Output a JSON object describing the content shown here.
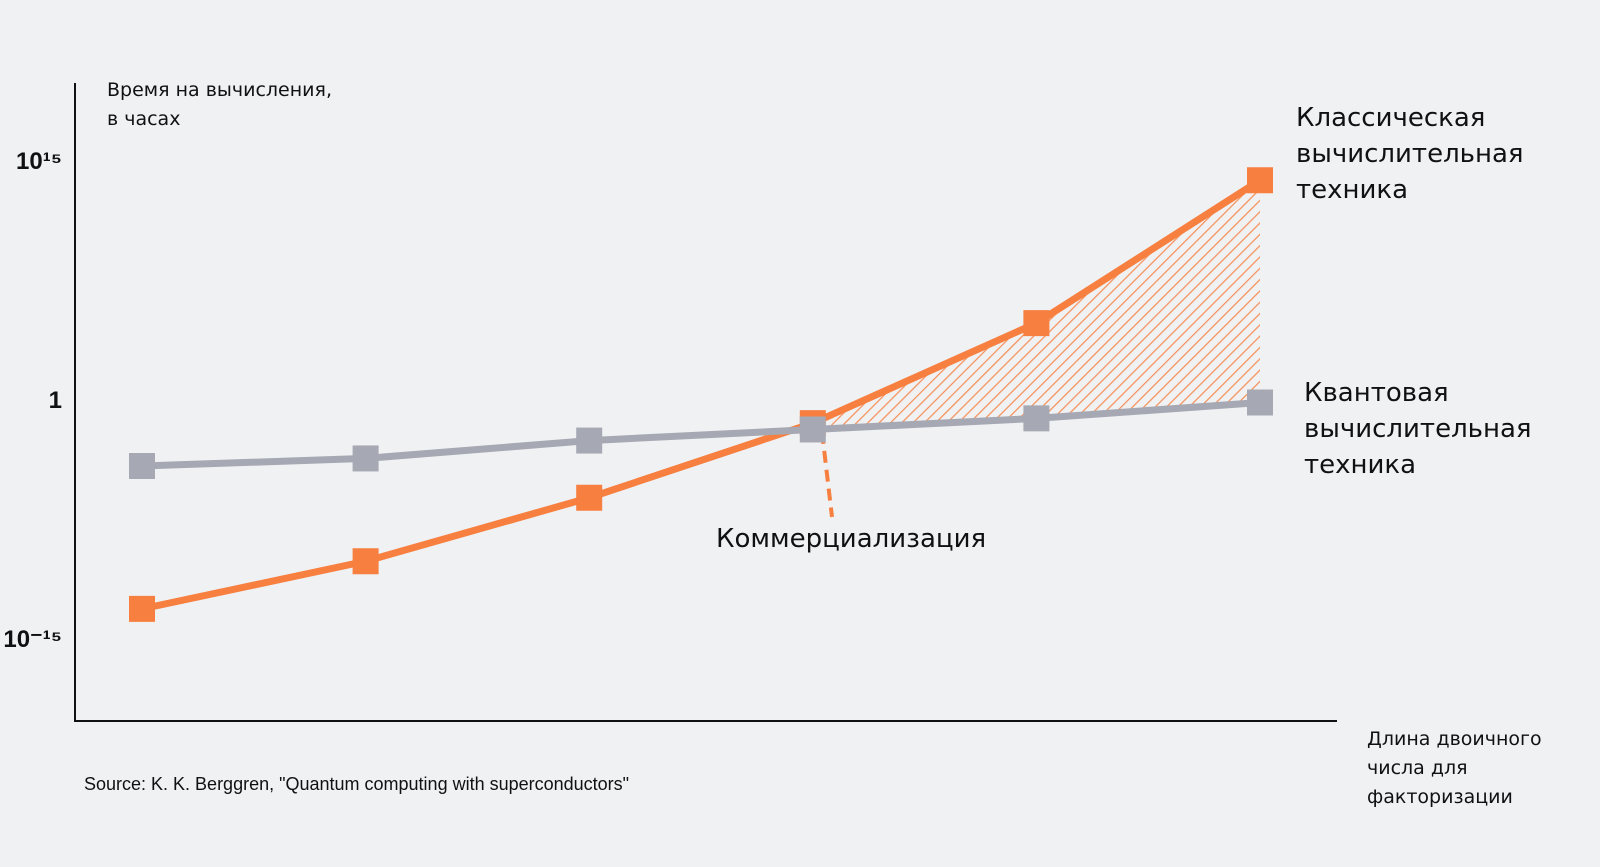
{
  "chart_data": {
    "type": "line",
    "y_label": [
      "Время на вычисления,",
      "в часах"
    ],
    "x_label": "Длина двоичного числа для факторизации",
    "categories": [
      null,
      null,
      null,
      null,
      null,
      null
    ],
    "series": [
      {
        "name": "Классическая вычислительная техника",
        "color": "#f77f3f",
        "values": [
          1e-13,
          1e-10,
          1e-06,
          0.05,
          100000.0,
          100000000000000.0
        ]
      },
      {
        "name": "Квантовая вычислительная техника",
        "color": "#a6a9b3",
        "values": [
          0.0001,
          0.0003,
          0.004,
          0.02,
          0.1,
          1
        ]
      }
    ],
    "log_y": true,
    "ylim": [
      1e-20,
      1e+20
    ],
    "yticks": [
      {
        "value": 1000000000000000.0,
        "label": "10¹⁵"
      },
      1,
      {
        "value": 1e-15,
        "label": "10⁻¹⁵"
      }
    ],
    "grid": false,
    "annotation": "Коммерциализация",
    "source": "Source: K. K. Berggren, \"Quantum computing with superconductors\""
  }
}
